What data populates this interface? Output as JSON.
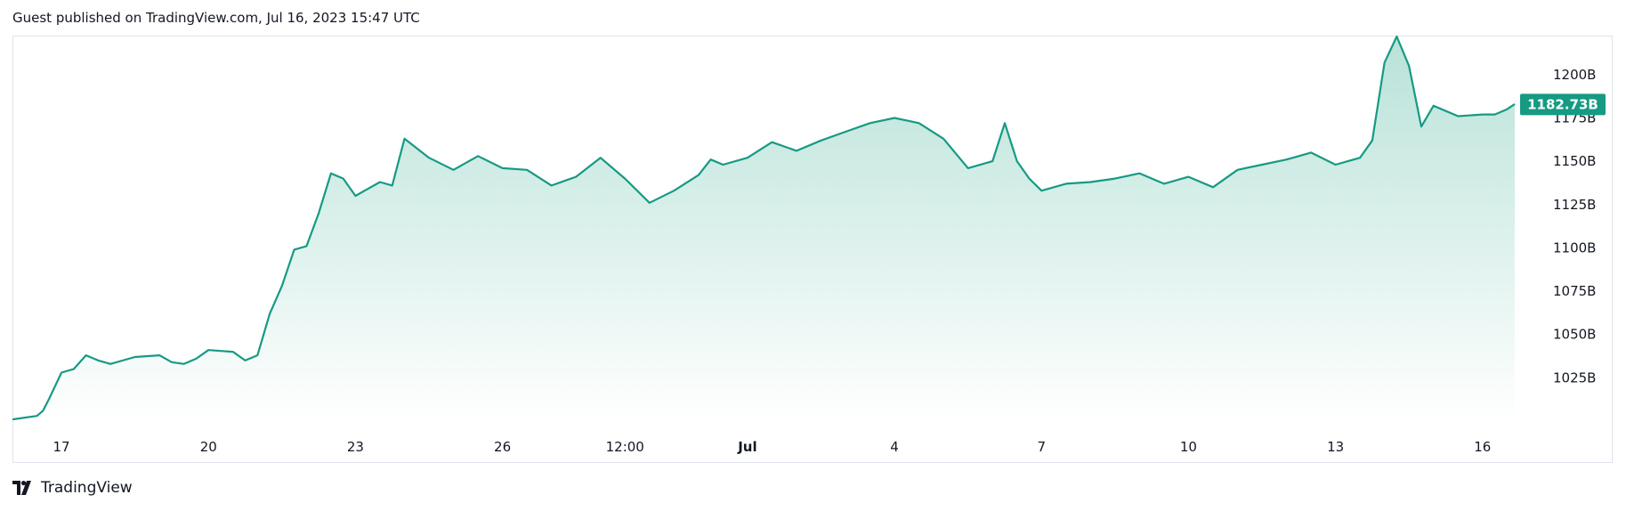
{
  "header": {
    "published_text": "Guest published on TradingView.com, Jul 16, 2023 15:47 UTC"
  },
  "footer": {
    "brand": "TradingView",
    "logo_icon": "tradingview-logo-icon"
  },
  "colors": {
    "line": "#169a83",
    "fill_top": "#b8e2d8",
    "fill_bottom": "#ffffff",
    "price_tag": "#169a83",
    "border": "#e0e3eb"
  },
  "chart_data": {
    "type": "area",
    "title": "",
    "xlabel": "",
    "ylabel": "",
    "ylim": [
      1000,
      1222
    ],
    "y_ticks": [
      "1025B",
      "1050B",
      "1075B",
      "1100B",
      "1125B",
      "1150B",
      "1175B",
      "1200B"
    ],
    "x_ticks": [
      {
        "label": "17",
        "x": "2023-06-17",
        "bold": false
      },
      {
        "label": "20",
        "x": "2023-06-20",
        "bold": false
      },
      {
        "label": "23",
        "x": "2023-06-23",
        "bold": false
      },
      {
        "label": "26",
        "x": "2023-06-26",
        "bold": false
      },
      {
        "label": "12:00",
        "x": "2023-06-28 12:00",
        "bold": false
      },
      {
        "label": "Jul",
        "x": "2023-07-01",
        "bold": true
      },
      {
        "label": "4",
        "x": "2023-07-04",
        "bold": false
      },
      {
        "label": "7",
        "x": "2023-07-07",
        "bold": false
      },
      {
        "label": "10",
        "x": "2023-07-10",
        "bold": false
      },
      {
        "label": "13",
        "x": "2023-07-13",
        "bold": false
      },
      {
        "label": "16",
        "x": "2023-07-16",
        "bold": false
      }
    ],
    "last_value_label": "1182.73B",
    "last_value": 1182.73,
    "series": [
      {
        "x": [
          "2023-06-16 00:00",
          "2023-06-16 12:00",
          "2023-06-16 15:00",
          "2023-06-16 18:00",
          "2023-06-17 00:00",
          "2023-06-17 06:00",
          "2023-06-17 12:00",
          "2023-06-17 18:00",
          "2023-06-18 00:00",
          "2023-06-18 12:00",
          "2023-06-19 00:00",
          "2023-06-19 06:00",
          "2023-06-19 12:00",
          "2023-06-19 18:00",
          "2023-06-20 00:00",
          "2023-06-20 12:00",
          "2023-06-20 18:00",
          "2023-06-21 00:00",
          "2023-06-21 06:00",
          "2023-06-21 12:00",
          "2023-06-21 18:00",
          "2023-06-22 00:00",
          "2023-06-22 06:00",
          "2023-06-22 12:00",
          "2023-06-22 18:00",
          "2023-06-23 00:00",
          "2023-06-23 06:00",
          "2023-06-23 12:00",
          "2023-06-23 18:00",
          "2023-06-24 00:00",
          "2023-06-24 12:00",
          "2023-06-25 00:00",
          "2023-06-25 12:00",
          "2023-06-26 00:00",
          "2023-06-26 12:00",
          "2023-06-27 00:00",
          "2023-06-27 12:00",
          "2023-06-28 00:00",
          "2023-06-28 12:00",
          "2023-06-29 00:00",
          "2023-06-29 12:00",
          "2023-06-30 00:00",
          "2023-06-30 06:00",
          "2023-06-30 12:00",
          "2023-07-01 00:00",
          "2023-07-01 12:00",
          "2023-07-02 00:00",
          "2023-07-02 12:00",
          "2023-07-03 00:00",
          "2023-07-03 12:00",
          "2023-07-04 00:00",
          "2023-07-04 12:00",
          "2023-07-05 00:00",
          "2023-07-05 12:00",
          "2023-07-06 00:00",
          "2023-07-06 06:00",
          "2023-07-06 12:00",
          "2023-07-06 18:00",
          "2023-07-07 00:00",
          "2023-07-07 12:00",
          "2023-07-08 00:00",
          "2023-07-08 12:00",
          "2023-07-09 00:00",
          "2023-07-09 12:00",
          "2023-07-10 00:00",
          "2023-07-10 12:00",
          "2023-07-11 00:00",
          "2023-07-11 12:00",
          "2023-07-12 00:00",
          "2023-07-12 12:00",
          "2023-07-13 00:00",
          "2023-07-13 12:00",
          "2023-07-13 18:00",
          "2023-07-14 00:00",
          "2023-07-14 06:00",
          "2023-07-14 12:00",
          "2023-07-14 18:00",
          "2023-07-15 00:00",
          "2023-07-15 12:00",
          "2023-07-16 00:00",
          "2023-07-16 06:00",
          "2023-07-16 12:00",
          "2023-07-16 15:47"
        ],
        "values": [
          1001,
          1003,
          1006,
          1013,
          1028,
          1030,
          1038,
          1035,
          1033,
          1037,
          1038,
          1034,
          1033,
          1036,
          1041,
          1040,
          1035,
          1038,
          1062,
          1078,
          1099,
          1101,
          1120,
          1143,
          1140,
          1130,
          1134,
          1138,
          1136,
          1163,
          1152,
          1145,
          1153,
          1146,
          1145,
          1136,
          1141,
          1152,
          1140,
          1126,
          1133,
          1142,
          1151,
          1148,
          1152,
          1161,
          1156,
          1162,
          1167,
          1172,
          1175,
          1172,
          1163,
          1146,
          1150,
          1172,
          1150,
          1140,
          1133,
          1137,
          1138,
          1140,
          1143,
          1137,
          1141,
          1135,
          1145,
          1148,
          1151,
          1155,
          1148,
          1152,
          1162,
          1207,
          1222,
          1205,
          1170,
          1182,
          1176,
          1177,
          1177,
          1180,
          1183
        ]
      }
    ]
  }
}
